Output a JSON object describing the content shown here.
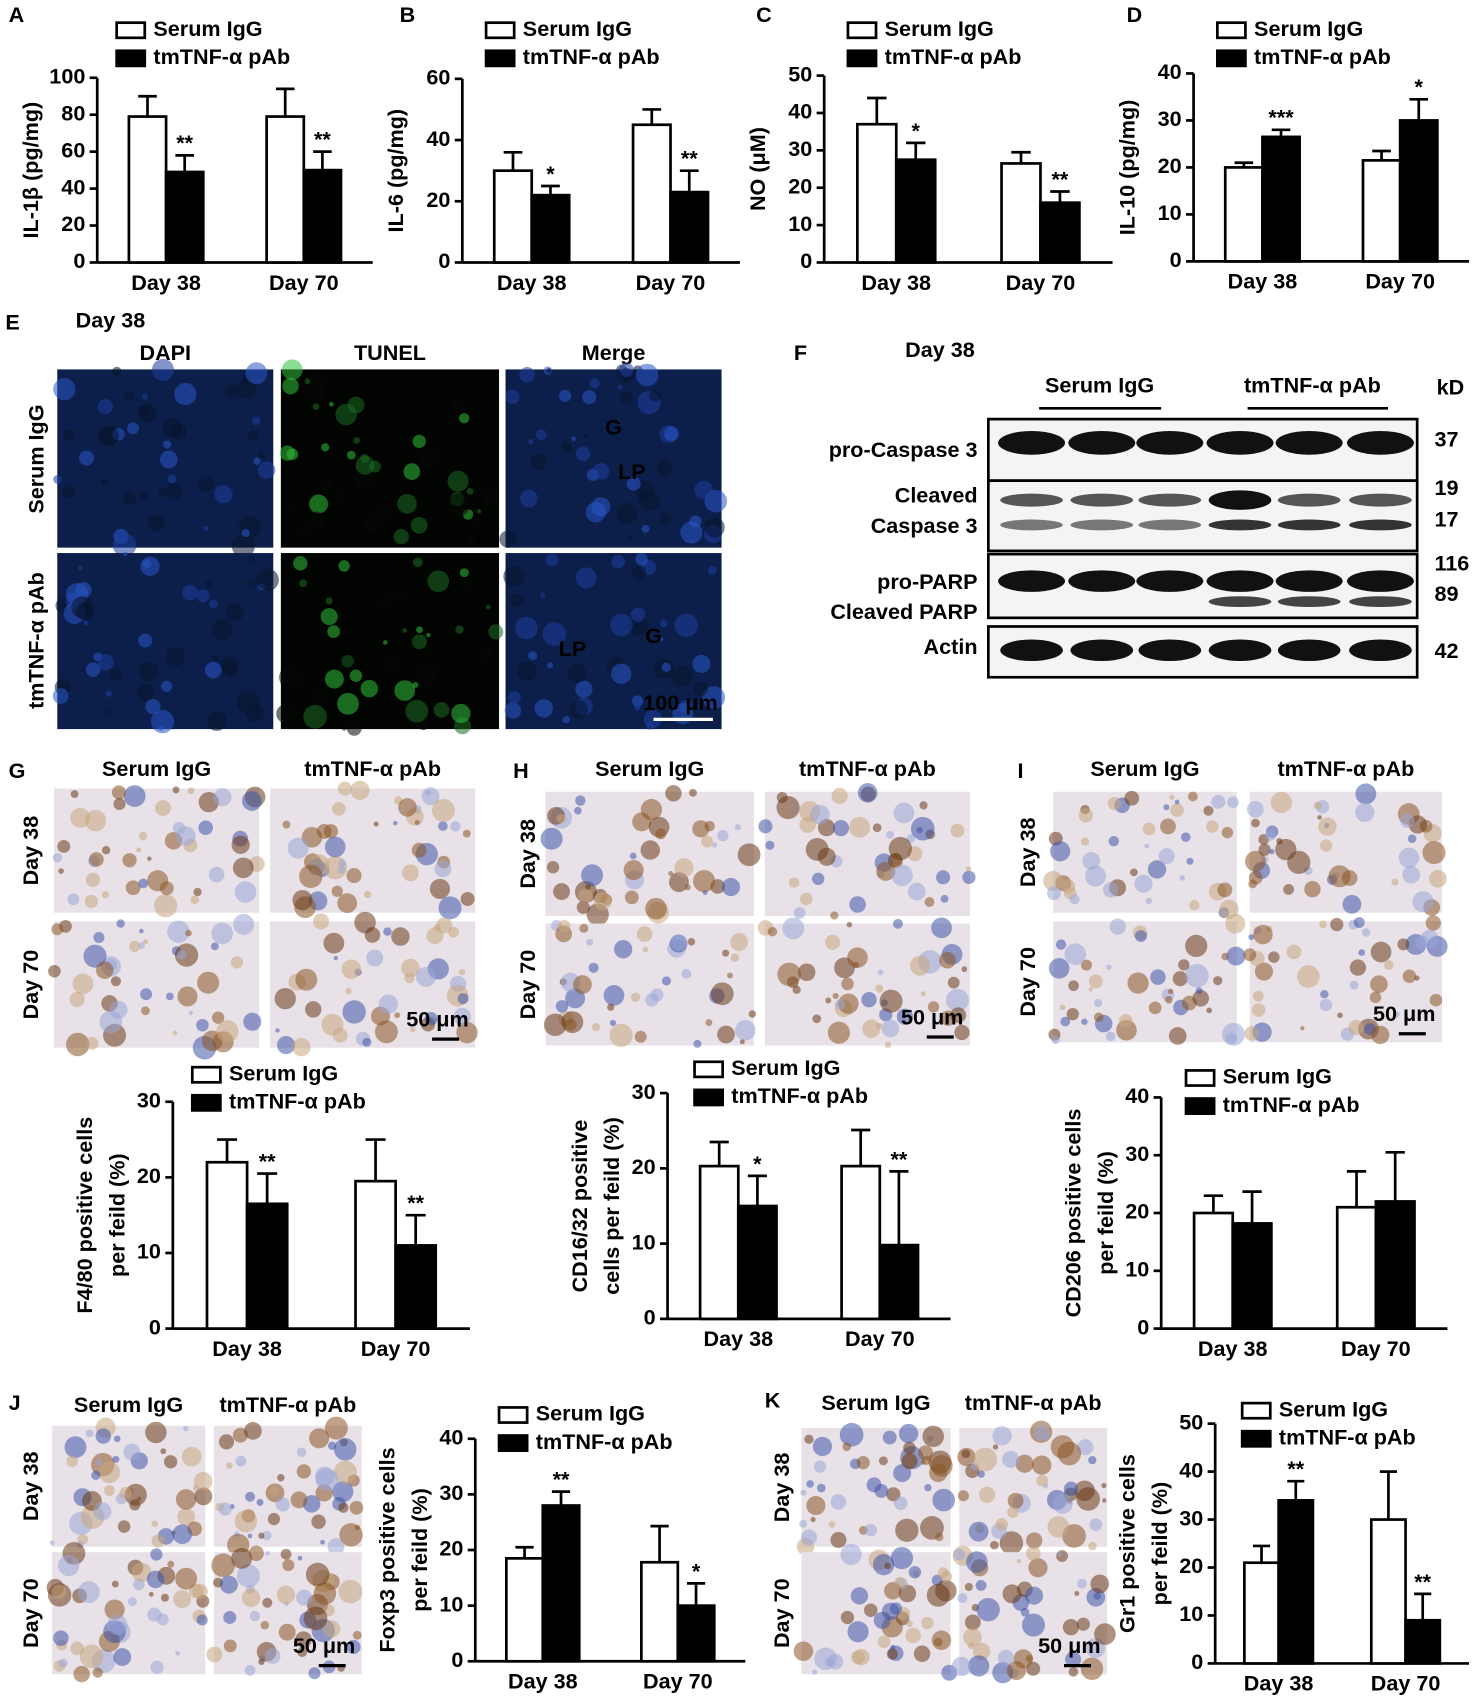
{
  "chart_data": [
    {
      "type": "bar",
      "panel": "A",
      "ylabel": [
        "IL-1β (pg/mg)"
      ],
      "categories": [
        "Day 38",
        "Day 70"
      ],
      "ylim": [
        0,
        100
      ],
      "yticks": [
        0,
        20,
        40,
        60,
        80,
        100
      ],
      "series": [
        {
          "name": "Serum IgG",
          "color": "#ffffff",
          "values": [
            79,
            79
          ],
          "errors": [
            11,
            15
          ]
        },
        {
          "name": "tmTNF-α pAb",
          "color": "#000000",
          "values": [
            49,
            50
          ],
          "errors": [
            9,
            10
          ],
          "annotations": [
            "**",
            "**"
          ]
        }
      ]
    },
    {
      "type": "bar",
      "panel": "B",
      "ylabel": [
        "IL-6 (pg/mg)"
      ],
      "categories": [
        "Day 38",
        "Day 70"
      ],
      "ylim": [
        0,
        60
      ],
      "yticks": [
        0,
        20,
        40,
        60
      ],
      "series": [
        {
          "name": "Serum IgG",
          "color": "#ffffff",
          "values": [
            30,
            45
          ],
          "errors": [
            6,
            5
          ]
        },
        {
          "name": "tmTNF-α pAb",
          "color": "#000000",
          "values": [
            22,
            23
          ],
          "errors": [
            3,
            7
          ],
          "annotations": [
            "*",
            "**"
          ]
        }
      ]
    },
    {
      "type": "bar",
      "panel": "C",
      "ylabel": [
        "NO (μM)"
      ],
      "categories": [
        "Day 38",
        "Day 70"
      ],
      "ylim": [
        0,
        50
      ],
      "yticks": [
        0,
        10,
        20,
        30,
        40,
        50
      ],
      "series": [
        {
          "name": "Serum IgG",
          "color": "#ffffff",
          "values": [
            37,
            26.5
          ],
          "errors": [
            7,
            3
          ]
        },
        {
          "name": "tmTNF-α pAb",
          "color": "#000000",
          "values": [
            27.5,
            16
          ],
          "errors": [
            4.5,
            3
          ],
          "annotations": [
            "*",
            "**"
          ]
        }
      ]
    },
    {
      "type": "bar",
      "panel": "D",
      "ylabel": [
        "IL-10 (pg/mg)"
      ],
      "categories": [
        "Day 38",
        "Day 70"
      ],
      "ylim": [
        0,
        40
      ],
      "yticks": [
        0,
        10,
        20,
        30,
        40
      ],
      "series": [
        {
          "name": "Serum IgG",
          "color": "#ffffff",
          "values": [
            20,
            21.5
          ],
          "errors": [
            1,
            2
          ]
        },
        {
          "name": "tmTNF-α pAb",
          "color": "#000000",
          "values": [
            26.5,
            30
          ],
          "errors": [
            1.5,
            4.5
          ],
          "annotations": [
            "***",
            "*"
          ]
        }
      ]
    },
    {
      "type": "bar",
      "panel": "G",
      "ylabel": [
        "F4/80 positive cells",
        "per feild (%)"
      ],
      "categories": [
        "Day 38",
        "Day 70"
      ],
      "ylim": [
        0,
        30
      ],
      "yticks": [
        0,
        10,
        20,
        30
      ],
      "series": [
        {
          "name": "Serum IgG",
          "color": "#ffffff",
          "values": [
            22,
            19.5
          ],
          "errors": [
            3,
            5.5
          ]
        },
        {
          "name": "tmTNF-α pAb",
          "color": "#000000",
          "values": [
            16.5,
            11
          ],
          "errors": [
            4,
            4
          ],
          "annotations": [
            "**",
            "**"
          ]
        }
      ]
    },
    {
      "type": "bar",
      "panel": "H",
      "ylabel": [
        "CD16/32 positive",
        "cells per feild (%)"
      ],
      "categories": [
        "Day 38",
        "Day 70"
      ],
      "ylim": [
        0,
        30
      ],
      "yticks": [
        0,
        10,
        20,
        30
      ],
      "series": [
        {
          "name": "Serum IgG",
          "color": "#ffffff",
          "values": [
            20.3,
            20.3
          ],
          "errors": [
            3.2,
            4.8
          ]
        },
        {
          "name": "tmTNF-α pAb",
          "color": "#000000",
          "values": [
            15,
            9.8
          ],
          "errors": [
            4,
            9.8
          ],
          "annotations": [
            "*",
            "**"
          ]
        }
      ]
    },
    {
      "type": "bar",
      "panel": "I",
      "ylabel": [
        "CD206 positive cells",
        "per feild (%)"
      ],
      "categories": [
        "Day 38",
        "Day 70"
      ],
      "ylim": [
        0,
        40
      ],
      "yticks": [
        0,
        10,
        20,
        30,
        40
      ],
      "series": [
        {
          "name": "Serum IgG",
          "color": "#ffffff",
          "values": [
            20,
            21
          ],
          "errors": [
            3,
            6.2
          ]
        },
        {
          "name": "tmTNF-α pAb",
          "color": "#000000",
          "values": [
            18.2,
            22
          ],
          "errors": [
            5.5,
            8.5
          ]
        }
      ]
    },
    {
      "type": "bar",
      "panel": "J",
      "ylabel": [
        "Foxp3 positive cells",
        "per feild (%)"
      ],
      "categories": [
        "Day 38",
        "Day 70"
      ],
      "ylim": [
        0,
        40
      ],
      "yticks": [
        0,
        10,
        20,
        30,
        40
      ],
      "series": [
        {
          "name": "Serum IgG",
          "color": "#ffffff",
          "values": [
            18.5,
            17.8
          ],
          "errors": [
            2,
            6.5
          ]
        },
        {
          "name": "tmTNF-α pAb",
          "color": "#000000",
          "values": [
            28,
            10
          ],
          "errors": [
            2.5,
            4
          ],
          "annotations": [
            "**",
            "*"
          ]
        }
      ]
    },
    {
      "type": "bar",
      "panel": "K",
      "ylabel": [
        "Gr1 positive cells",
        "per feild (%)"
      ],
      "categories": [
        "Day 38",
        "Day 70"
      ],
      "ylim": [
        0,
        50
      ],
      "yticks": [
        0,
        10,
        20,
        30,
        40,
        50
      ],
      "series": [
        {
          "name": "Serum IgG",
          "color": "#ffffff",
          "values": [
            21,
            30
          ],
          "errors": [
            3.5,
            10
          ]
        },
        {
          "name": "tmTNF-α pAb",
          "color": "#000000",
          "values": [
            34,
            9
          ],
          "errors": [
            4,
            5.5
          ],
          "annotations": [
            "**",
            "**"
          ]
        }
      ]
    }
  ],
  "panel_E": {
    "letter": "E",
    "title": "Day 38",
    "columns": [
      "DAPI",
      "TUNEL",
      "Merge"
    ],
    "rows": [
      "Serum IgG",
      "tmTNF-α pAb"
    ],
    "labels": [
      "G",
      "LP",
      "LP",
      "G"
    ],
    "scale": "100 μm"
  },
  "panel_F": {
    "letter": "F",
    "title": "Day 38",
    "groups": [
      "Serum IgG",
      "tmTNF-α pAb"
    ],
    "unit": "kD",
    "bands": [
      "pro-Caspase 3",
      "Cleaved",
      "Caspase 3",
      "pro-PARP",
      "Cleaved PARP",
      "Actin"
    ],
    "sizes": [
      "37",
      "19",
      "17",
      "116",
      "89",
      "42"
    ]
  },
  "panel_G": {
    "columns": [
      "Serum IgG",
      "tmTNF-α pAb"
    ],
    "rows": [
      "Day 38",
      "Day 70"
    ],
    "scale": "50 μm"
  },
  "panel_H": {
    "columns": [
      "Serum IgG",
      "tmTNF-α pAb"
    ],
    "rows": [
      "Day 38",
      "Day 70"
    ],
    "scale": "50 μm"
  },
  "panel_I": {
    "columns": [
      "Serum IgG",
      "tmTNF-α pAb"
    ],
    "rows": [
      "Day 38",
      "Day 70"
    ],
    "scale": "50 μm"
  },
  "panel_J": {
    "columns": [
      "Serum IgG",
      "tmTNF-α pAb"
    ],
    "rows": [
      "Day 38",
      "Day 70"
    ],
    "scale": "50 μm"
  },
  "panel_K": {
    "columns": [
      "Serum IgG",
      "tmTNF-α pAb"
    ],
    "rows": [
      "Day 38",
      "Day 70"
    ],
    "scale": "50 μm"
  }
}
